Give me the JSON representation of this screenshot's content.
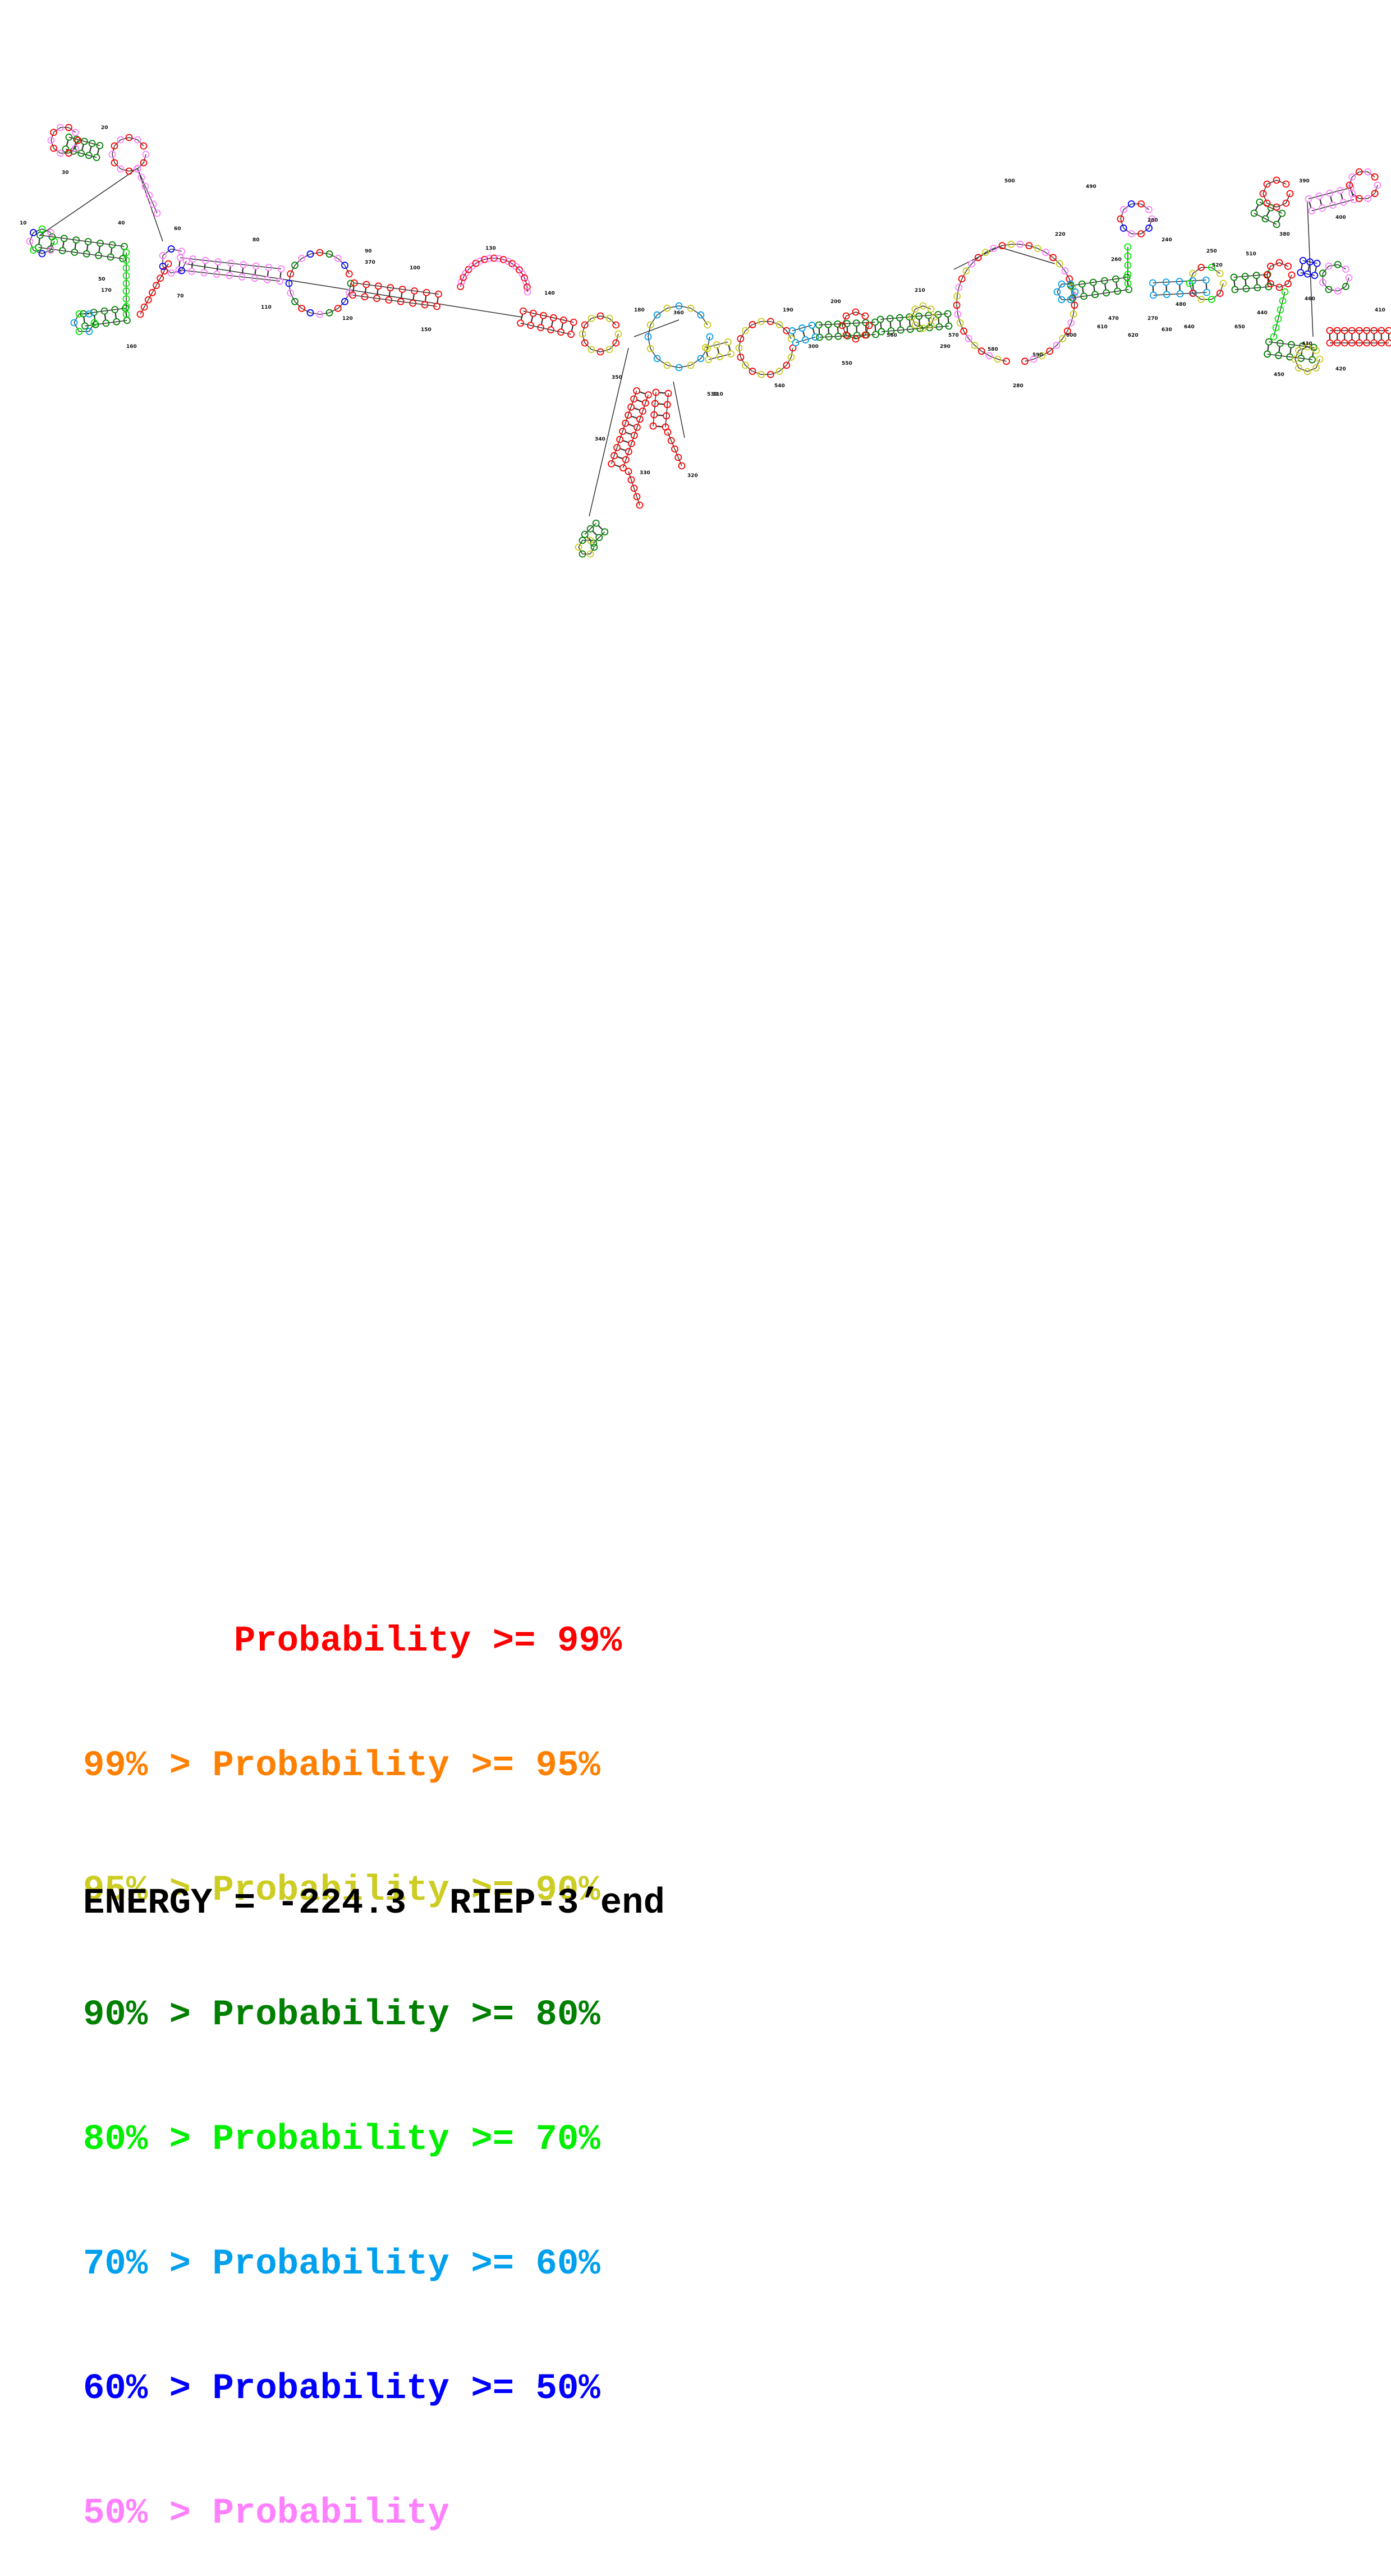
{
  "colors": {
    "red": "#ff0000",
    "orange": "#ff8000",
    "yellow": "#cccc22",
    "darkgreen": "#008000",
    "green": "#00ee00",
    "cyan": "#00a0ee",
    "blue": "#0000ff",
    "pink": "#ff80ff"
  },
  "position_labels": [
    "10",
    "20",
    "30",
    "40",
    "50",
    "60",
    "70",
    "80",
    "90",
    "100",
    "110",
    "120",
    "130",
    "140",
    "150",
    "160",
    "170",
    "180",
    "190",
    "200",
    "210",
    "220",
    "230",
    "240",
    "250",
    "260",
    "270",
    "280",
    "290",
    "300",
    "310",
    "320",
    "330",
    "340",
    "350",
    "360",
    "370",
    "380",
    "390",
    "400",
    "410",
    "420",
    "430",
    "440",
    "450",
    "460",
    "470",
    "480",
    "490",
    "500",
    "510",
    "520",
    "530",
    "540",
    "550",
    "560",
    "570",
    "580",
    "590",
    "600",
    "610",
    "620",
    "630",
    "640",
    "650"
  ],
  "legend": [
    {
      "text": "       Probability >= 99%",
      "color": "#ff0000"
    },
    {
      "text": "99% > Probability >= 95%",
      "color": "#ff8000"
    },
    {
      "text": "95% > Probability >= 90%",
      "color": "#cccc22"
    },
    {
      "text": "90% > Probability >= 80%",
      "color": "#008000"
    },
    {
      "text": "80% > Probability >= 70%",
      "color": "#00ee00"
    },
    {
      "text": "70% > Probability >= 60%",
      "color": "#00a0ee"
    },
    {
      "text": "60% > Probability >= 50%",
      "color": "#0000ff"
    },
    {
      "text": "50% > Probability",
      "color": "#ff80ff"
    }
  ],
  "energy_label": "ENERGY = -224.3  RIEP-3’end"
}
